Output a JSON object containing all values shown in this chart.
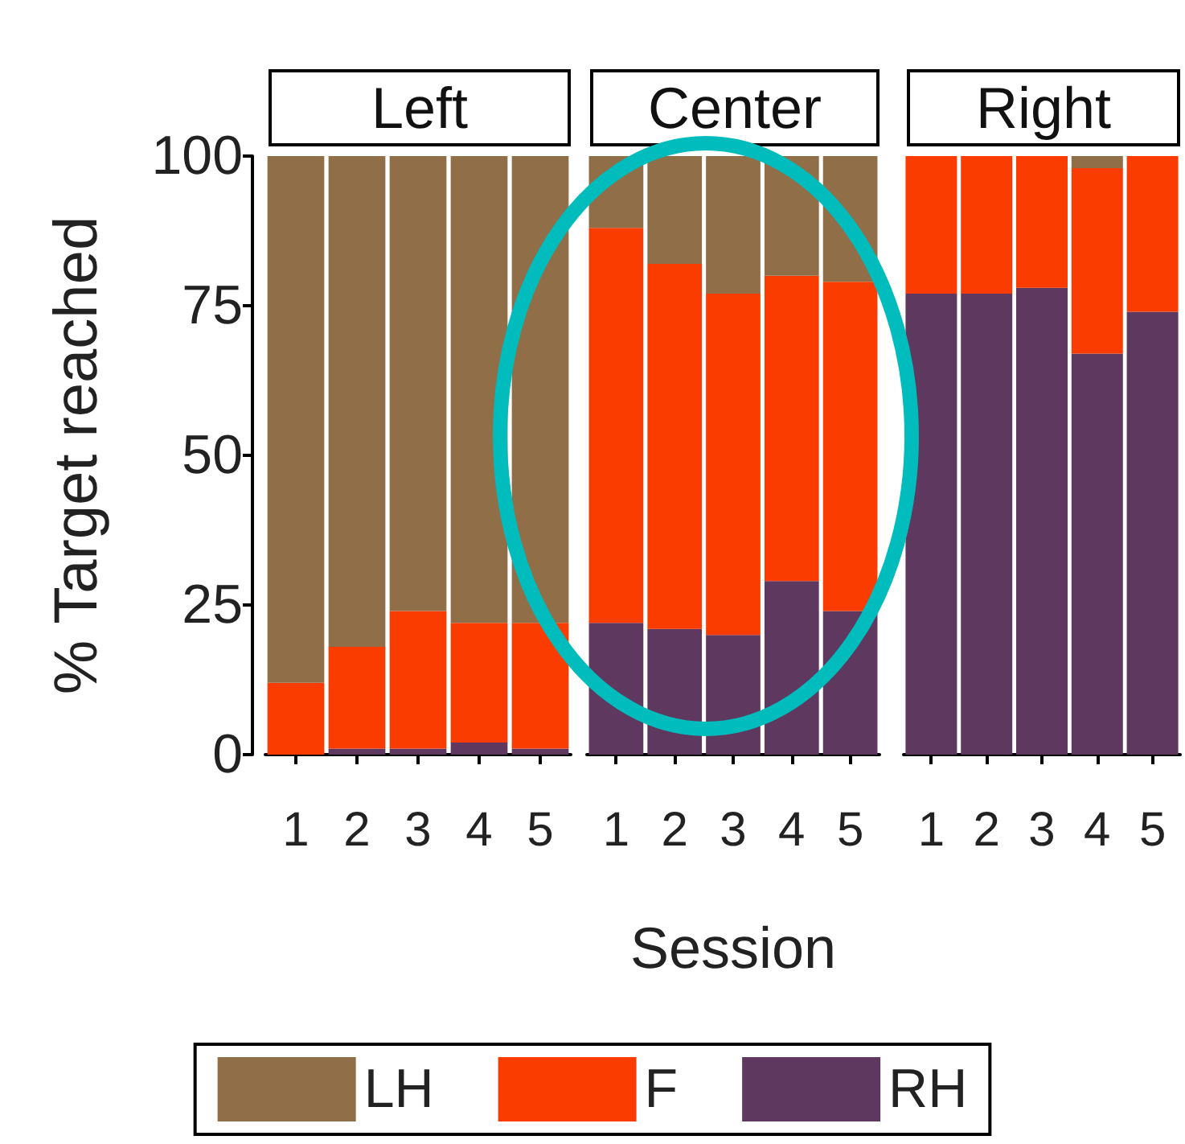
{
  "chart_data": [
    {
      "type": "bar",
      "title": "Left",
      "ylabel": "% Target reached",
      "categories": [
        "1",
        "2",
        "3",
        "4",
        "5"
      ],
      "stacked": true,
      "ylim": [
        0,
        100
      ],
      "yticks": [
        0,
        25,
        50,
        75,
        100
      ],
      "grid": false,
      "legend": "bottom",
      "series": [
        {
          "name": "RH",
          "color": "#5f3860",
          "values": [
            0,
            1,
            1,
            2,
            1
          ]
        },
        {
          "name": "F",
          "color": "#fb3c00",
          "values": [
            12,
            17,
            23,
            20,
            21
          ]
        },
        {
          "name": "LH",
          "color": "#8f6e48",
          "values": [
            88,
            82,
            76,
            78,
            78
          ]
        }
      ]
    },
    {
      "type": "bar",
      "title": "Center",
      "xlabel": "Session",
      "categories": [
        "1",
        "2",
        "3",
        "4",
        "5"
      ],
      "stacked": true,
      "ylim": [
        0,
        100
      ],
      "yticks": [
        0,
        25,
        50,
        75,
        100
      ],
      "grid": false,
      "tick_labels": "x",
      "series": [
        {
          "color": "#5f3860",
          "values": [
            22,
            21,
            20,
            29,
            24
          ]
        },
        {
          "color": "#fb3c00",
          "values": [
            66,
            61,
            57,
            51,
            55
          ]
        },
        {
          "color": "#8f6e48",
          "values": [
            12,
            18,
            23,
            20,
            21
          ]
        }
      ]
    },
    {
      "type": "bar",
      "title": "Right",
      "categories": [
        "1",
        "2",
        "3",
        "4",
        "5"
      ],
      "stacked": true,
      "ylim": [
        0,
        100
      ],
      "yticks": [
        0,
        25,
        50,
        75,
        100
      ],
      "grid": false,
      "tick_labels": "x",
      "series": [
        {
          "color": "#5f3860",
          "values": [
            77,
            77,
            78,
            67,
            74
          ]
        },
        {
          "color": "#fb3c00",
          "values": [
            23,
            23,
            22,
            31,
            26
          ]
        },
        {
          "color": "#8f6e48",
          "values": [
            0,
            0,
            0,
            2,
            0
          ]
        }
      ]
    }
  ]
}
